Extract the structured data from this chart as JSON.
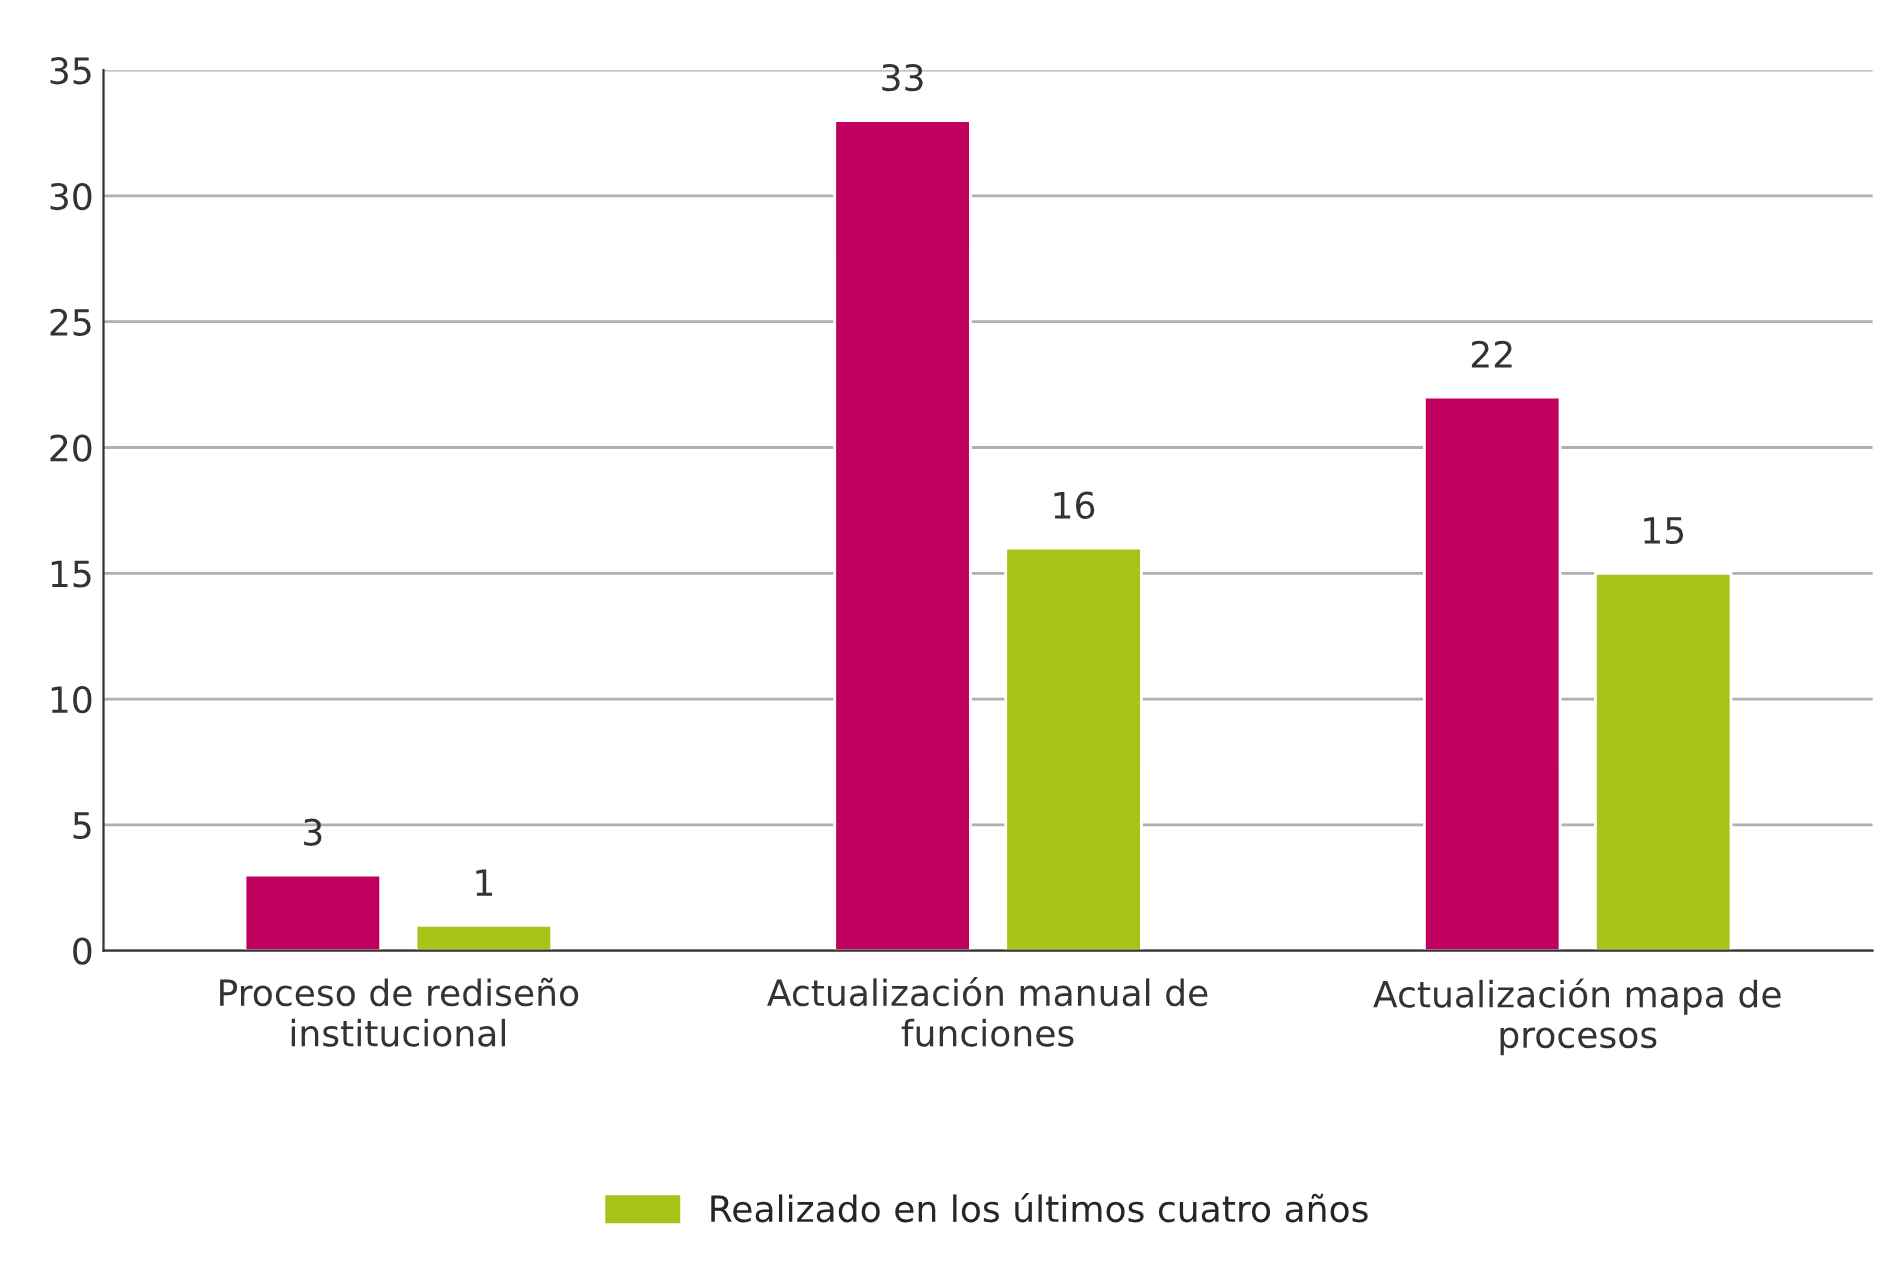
{
  "chart_data": {
    "type": "bar",
    "categories": [
      "Proceso de rediseño institucional",
      "Actualización manual de funciones",
      "Actualización mapa de procesos"
    ],
    "series": [
      {
        "color": "#c0005f",
        "values": [
          3,
          33,
          22
        ]
      },
      {
        "name": "Realizado en los últimos cuatro años",
        "color": "#a8c418",
        "values": [
          1,
          16,
          15
        ]
      }
    ],
    "ylim": [
      0,
      35
    ],
    "yticks": [
      0,
      5,
      10,
      15,
      20,
      25,
      30,
      35
    ],
    "grid": "y",
    "legend": "bottom",
    "data_labels": true
  }
}
